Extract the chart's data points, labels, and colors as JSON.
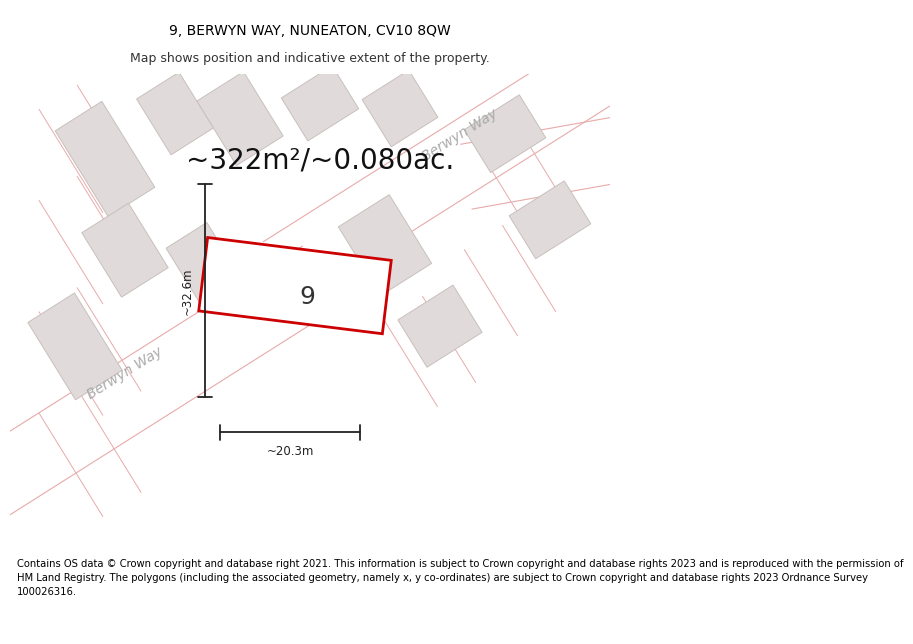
{
  "title": "9, BERWYN WAY, NUNEATON, CV10 8QW",
  "subtitle": "Map shows position and indicative extent of the property.",
  "area_text": "~322m²/~0.080ac.",
  "property_number": "9",
  "dim_width": "~20.3m",
  "dim_height": "~32.6m",
  "footer": "Contains OS data © Crown copyright and database right 2021. This information is subject to Crown copyright and database rights 2023 and is reproduced with the permission of\nHM Land Registry. The polygons (including the associated geometry, namely x, y co-ordinates) are subject to Crown copyright and database rights 2023 Ordnance Survey\n100026316.",
  "bg_color": "#ffffff",
  "map_bg": "#f7f4f2",
  "road_outline_color": "#e8aaaa",
  "building_fill": "#e0dada",
  "building_edge": "#c8c0bc",
  "highlight_color": "#cc0000",
  "road_label_color": "#aaaaaa",
  "dim_color": "#222222",
  "text_color": "#333333",
  "title_fontsize": 10,
  "subtitle_fontsize": 9,
  "area_fontsize": 20,
  "footer_fontsize": 7.2,
  "prop_label_fontsize": 18,
  "road_label_fontsize": 10
}
